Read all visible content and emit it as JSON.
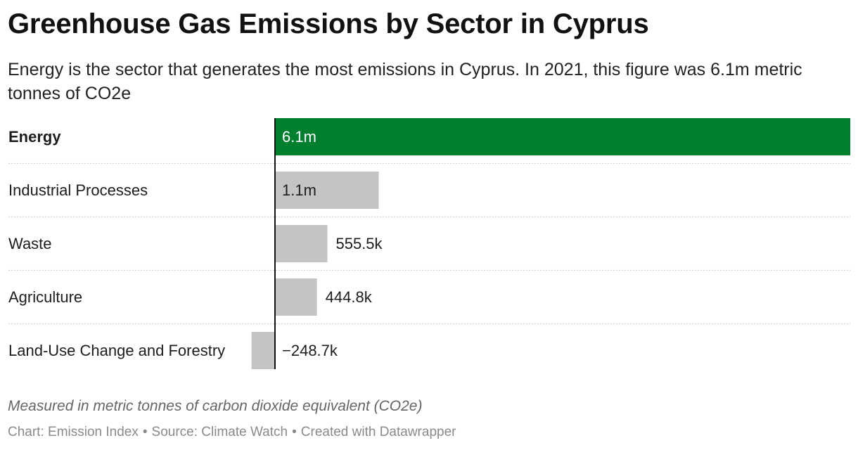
{
  "header": {
    "title": "Greenhouse Gas Emissions by Sector in Cyprus",
    "subtitle": "Energy is the sector that generates the most emissions in Cyprus. In 2021, this figure was 6.1m metric tonnes of CO2e"
  },
  "chart_data": {
    "type": "bar",
    "orientation": "horizontal",
    "categories": [
      "Energy",
      "Industrial Processes",
      "Waste",
      "Agriculture",
      "Land-Use Change and Forestry"
    ],
    "values": [
      6100000,
      1100000,
      555500,
      444800,
      -248700
    ],
    "value_labels": [
      "6.1m",
      "1.1m",
      "555.5k",
      "444.8k",
      "−248.7k"
    ],
    "highlight_category": "Energy",
    "colors": {
      "highlight": "#00802f",
      "default": "#c4c4c4",
      "axis": "#111111",
      "divider": "#cfcfcf"
    }
  },
  "notes": "Measured in metric tonnes of carbon dioxide equivalent (CO2e)",
  "footer": {
    "chart_credit": "Chart: Emission Index",
    "source": "Source: Climate Watch",
    "tool": "Created with Datawrapper",
    "separator": "•"
  }
}
